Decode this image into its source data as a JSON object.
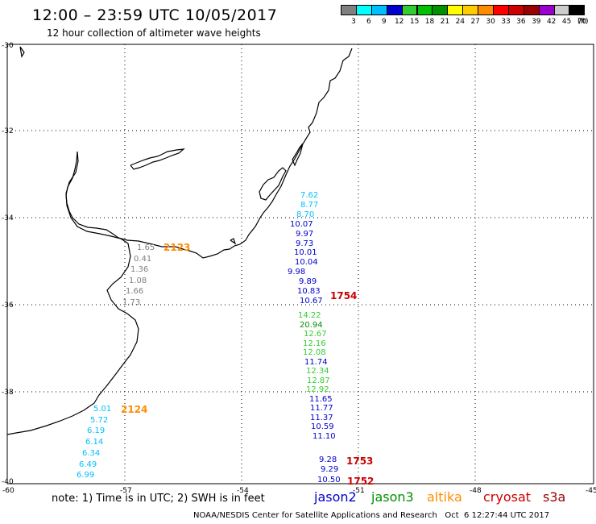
{
  "header": {
    "title": "12:00 – 23:59 UTC 10/05/2017",
    "subtitle": "12 hour collection of altimeter wave heights"
  },
  "legend": {
    "unit": "(ft)",
    "boxes": [
      {
        "color": "#808080",
        "label": "3"
      },
      {
        "color": "#00ffff",
        "label": "6"
      },
      {
        "color": "#00bfff",
        "label": "9"
      },
      {
        "color": "#0000cd",
        "label": "12"
      },
      {
        "color": "#32cd32",
        "label": "15"
      },
      {
        "color": "#00c000",
        "label": "18"
      },
      {
        "color": "#009000",
        "label": "21"
      },
      {
        "color": "#ffff00",
        "label": "24"
      },
      {
        "color": "#ffcc00",
        "label": "27"
      },
      {
        "color": "#ff8c00",
        "label": "30"
      },
      {
        "color": "#ff0000",
        "label": "33"
      },
      {
        "color": "#cc0000",
        "label": "36"
      },
      {
        "color": "#990000",
        "label": "39"
      },
      {
        "color": "#9900cc",
        "label": "42"
      },
      {
        "color": "#cccccc",
        "label": "45"
      },
      {
        "color": "#000000",
        "label": "70"
      }
    ]
  },
  "axes": {
    "lat_labels": [
      "-30",
      "-32",
      "-34",
      "-36",
      "-38",
      "-40"
    ],
    "lon_labels": [
      "-60",
      "-57",
      "-54",
      "-51",
      "-48",
      "-45"
    ]
  },
  "tracks": [
    {
      "time": "2123",
      "time_color": "#ff8c00",
      "values": [
        {
          "v": "1.65",
          "c": "#808080"
        },
        {
          "v": "0.41",
          "c": "#808080"
        },
        {
          "v": "1.36",
          "c": "#808080"
        },
        {
          "v": "1.08",
          "c": "#808080"
        },
        {
          "v": "1.66",
          "c": "#808080"
        },
        {
          "v": "1.73",
          "c": "#808080"
        }
      ]
    },
    {
      "time": "2124",
      "time_color": "#ff8c00",
      "values": [
        {
          "v": "5.01",
          "c": "#00bfff"
        },
        {
          "v": "5.72",
          "c": "#00bfff"
        },
        {
          "v": "6.19",
          "c": "#00bfff"
        },
        {
          "v": "6.14",
          "c": "#00bfff"
        },
        {
          "v": "6.34",
          "c": "#00bfff"
        },
        {
          "v": "6.49",
          "c": "#00bfff"
        },
        {
          "v": "6.99",
          "c": "#00bfff"
        }
      ]
    },
    {
      "time": "1754",
      "time_color": "#cc0000",
      "values": [
        {
          "v": "7.62",
          "c": "#00bfff"
        },
        {
          "v": "8.77",
          "c": "#00bfff"
        },
        {
          "v": "8.70",
          "c": "#00bfff"
        },
        {
          "v": "10.07",
          "c": "#0000cd"
        },
        {
          "v": "9.97",
          "c": "#0000cd"
        },
        {
          "v": "9.73",
          "c": "#0000cd"
        },
        {
          "v": "10.01",
          "c": "#0000cd"
        },
        {
          "v": "10.04",
          "c": "#0000cd"
        },
        {
          "v": "9.98",
          "c": "#0000cd"
        },
        {
          "v": "9.89",
          "c": "#0000cd"
        },
        {
          "v": "10.83",
          "c": "#0000cd"
        },
        {
          "v": "10.67",
          "c": "#0000cd"
        }
      ]
    },
    {
      "time": "",
      "time_color": "#cc0000",
      "values": [
        {
          "v": "14.22",
          "c": "#32cd32"
        },
        {
          "v": "20.94",
          "c": "#009000"
        },
        {
          "v": "12.67",
          "c": "#32cd32"
        },
        {
          "v": "12.16",
          "c": "#32cd32"
        },
        {
          "v": "12.08",
          "c": "#32cd32"
        },
        {
          "v": "11.74",
          "c": "#0000cd"
        },
        {
          "v": "12.34",
          "c": "#32cd32"
        },
        {
          "v": "12.87",
          "c": "#32cd32"
        },
        {
          "v": "12.92",
          "c": "#32cd32"
        },
        {
          "v": "11.65",
          "c": "#0000cd"
        },
        {
          "v": "11.77",
          "c": "#0000cd"
        },
        {
          "v": "11.37",
          "c": "#0000cd"
        },
        {
          "v": "10.59",
          "c": "#0000cd"
        },
        {
          "v": "11.10",
          "c": "#0000cd"
        }
      ]
    },
    {
      "time": "1753",
      "time_color": "#cc0000",
      "values": [
        {
          "v": "9.28",
          "c": "#0000cd"
        },
        {
          "v": "9.29",
          "c": "#0000cd"
        }
      ]
    },
    {
      "time": "1752",
      "time_color": "#cc0000",
      "values": [
        {
          "v": "10.50",
          "c": "#0000cd"
        }
      ]
    }
  ],
  "footer": {
    "note": "note: 1) Time is in UTC; 2) SWH is in feet",
    "satellites": [
      {
        "name": "jason2",
        "color": "#0000cd"
      },
      {
        "name": "jason3",
        "color": "#009000"
      },
      {
        "name": "altika",
        "color": "#ff8c00"
      },
      {
        "name": "cryosat",
        "color": "#cc0000"
      },
      {
        "name": "s3a",
        "color": "#990000"
      }
    ],
    "credit": "NOAA/NESDIS Center for Satellite Applications and Research   Oct  6 12:27:44 UTC 2017"
  }
}
